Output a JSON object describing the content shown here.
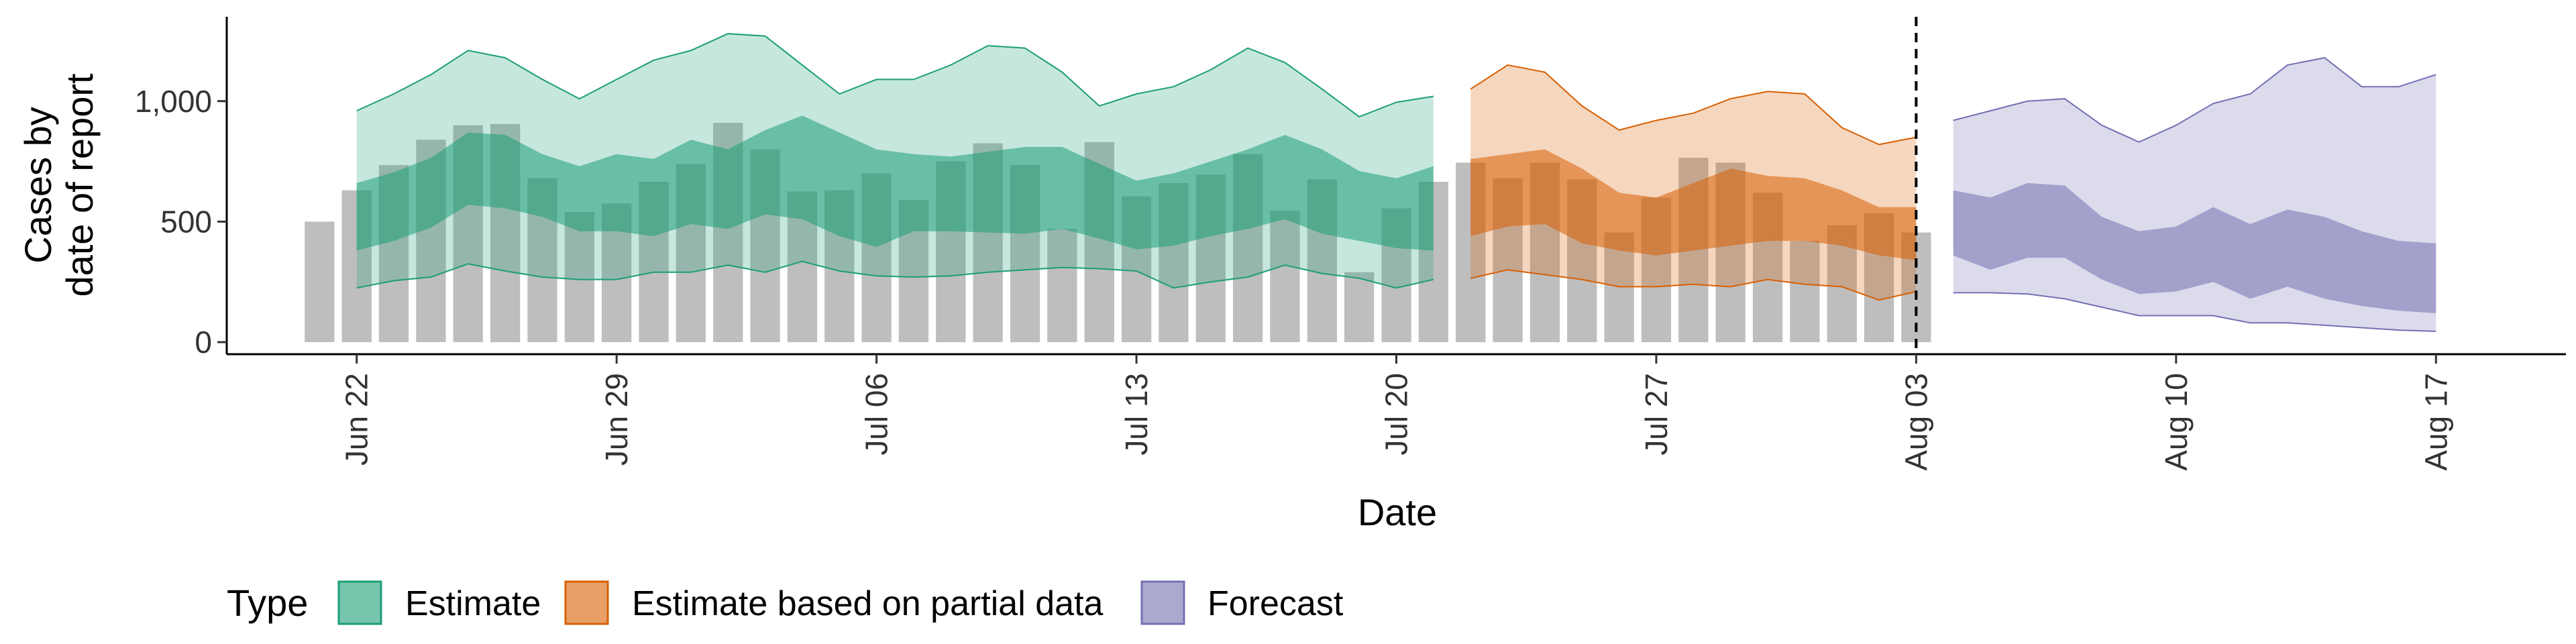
{
  "chart_data": {
    "type": "area",
    "xlabel": "Date",
    "ylabel_lines": [
      "Cases by",
      "date of report"
    ],
    "y_ticks": [
      0,
      500,
      1000
    ],
    "y_tick_labels": [
      "0",
      "500",
      "1,000"
    ],
    "ylim": [
      -50,
      1350
    ],
    "x_ticks": [
      "Jun 22",
      "Jun 29",
      "Jul 06",
      "Jul 13",
      "Jul 20",
      "Jul 27",
      "Aug 03",
      "Aug 10",
      "Aug 17"
    ],
    "x_range_days": [
      -3.5,
      59.5
    ],
    "x_origin_date": "2020-06-22",
    "vline_date": "Aug 03",
    "legend": {
      "title": "Type",
      "position": "bottom",
      "items": [
        {
          "label": "Estimate",
          "color": "#1b9e77"
        },
        {
          "label": "Estimate based on partial data",
          "color": "#d95f02"
        },
        {
          "label": "Forecast",
          "color": "#7570b3"
        }
      ]
    },
    "bars": {
      "color": "#bbbbbb",
      "dates": [
        "Jun 21",
        "Jun 22",
        "Jun 23",
        "Jun 24",
        "Jun 25",
        "Jun 26",
        "Jun 27",
        "Jun 28",
        "Jun 29",
        "Jun 30",
        "Jul 01",
        "Jul 02",
        "Jul 03",
        "Jul 04",
        "Jul 05",
        "Jul 06",
        "Jul 07",
        "Jul 08",
        "Jul 09",
        "Jul 10",
        "Jul 11",
        "Jul 12",
        "Jul 13",
        "Jul 14",
        "Jul 15",
        "Jul 16",
        "Jul 17",
        "Jul 18",
        "Jul 19",
        "Jul 20",
        "Jul 21",
        "Jul 22",
        "Jul 23",
        "Jul 24",
        "Jul 25",
        "Jul 26",
        "Jul 27",
        "Jul 28",
        "Jul 29",
        "Jul 30",
        "Jul 31",
        "Aug 01",
        "Aug 02",
        "Aug 03"
      ],
      "values": [
        500,
        630,
        735,
        840,
        900,
        905,
        680,
        540,
        575,
        665,
        740,
        910,
        800,
        625,
        630,
        700,
        590,
        750,
        825,
        735,
        470,
        830,
        605,
        660,
        695,
        780,
        545,
        675,
        290,
        555,
        665,
        745,
        680,
        745,
        675,
        455,
        600,
        765,
        745,
        620,
        420,
        485,
        535,
        455
      ]
    },
    "series": [
      {
        "name": "Estimate",
        "color": "#1b9e77",
        "dates": [
          "Jun 22",
          "Jun 23",
          "Jun 24",
          "Jun 25",
          "Jun 26",
          "Jun 27",
          "Jun 28",
          "Jun 29",
          "Jun 30",
          "Jul 01",
          "Jul 02",
          "Jul 03",
          "Jul 04",
          "Jul 05",
          "Jul 06",
          "Jul 07",
          "Jul 08",
          "Jul 09",
          "Jul 10",
          "Jul 11",
          "Jul 12",
          "Jul 13",
          "Jul 14",
          "Jul 15",
          "Jul 16",
          "Jul 17",
          "Jul 18",
          "Jul 19",
          "Jul 20",
          "Jul 21"
        ],
        "lower90": [
          225,
          255,
          270,
          325,
          295,
          270,
          260,
          260,
          290,
          290,
          320,
          290,
          335,
          295,
          275,
          270,
          275,
          290,
          300,
          310,
          305,
          295,
          225,
          250,
          270,
          320,
          285,
          265,
          225,
          260
        ],
        "lower50": [
          380,
          420,
          475,
          570,
          555,
          520,
          460,
          460,
          440,
          490,
          470,
          530,
          510,
          440,
          395,
          460,
          460,
          455,
          450,
          470,
          430,
          385,
          400,
          440,
          470,
          510,
          450,
          420,
          390,
          380
        ],
        "upper50": [
          660,
          705,
          765,
          870,
          860,
          780,
          730,
          780,
          760,
          840,
          800,
          880,
          940,
          870,
          800,
          780,
          770,
          790,
          810,
          810,
          740,
          670,
          700,
          750,
          800,
          860,
          800,
          710,
          680,
          730
        ],
        "upper90": [
          960,
          1030,
          1110,
          1210,
          1180,
          1090,
          1010,
          1090,
          1170,
          1210,
          1280,
          1270,
          1150,
          1030,
          1090,
          1090,
          1150,
          1230,
          1220,
          1120,
          980,
          1030,
          1060,
          1130,
          1220,
          1160,
          1050,
          935,
          995,
          1020
        ]
      },
      {
        "name": "Estimate based on partial data",
        "color": "#d95f02",
        "dates": [
          "Jul 22",
          "Jul 23",
          "Jul 24",
          "Jul 25",
          "Jul 26",
          "Jul 27",
          "Jul 28",
          "Jul 29",
          "Jul 30",
          "Jul 31",
          "Aug 01",
          "Aug 02",
          "Aug 03"
        ],
        "lower90": [
          265,
          300,
          280,
          260,
          230,
          230,
          240,
          230,
          260,
          240,
          230,
          175,
          210
        ],
        "lower50": [
          440,
          480,
          490,
          410,
          380,
          360,
          380,
          400,
          420,
          420,
          400,
          360,
          340
        ],
        "upper50": [
          760,
          780,
          800,
          720,
          620,
          600,
          660,
          720,
          690,
          680,
          630,
          560,
          560
        ],
        "upper90": [
          1050,
          1150,
          1120,
          980,
          880,
          920,
          950,
          1010,
          1040,
          1030,
          890,
          820,
          850
        ]
      },
      {
        "name": "Forecast",
        "color": "#7570b3",
        "dates": [
          "Aug 04",
          "Aug 05",
          "Aug 06",
          "Aug 07",
          "Aug 08",
          "Aug 09",
          "Aug 10",
          "Aug 11",
          "Aug 12",
          "Aug 13",
          "Aug 14",
          "Aug 15",
          "Aug 16",
          "Aug 17"
        ],
        "lower90": [
          205,
          205,
          200,
          180,
          145,
          110,
          110,
          110,
          80,
          80,
          70,
          60,
          50,
          45
        ],
        "lower50": [
          360,
          300,
          350,
          350,
          260,
          200,
          210,
          250,
          180,
          230,
          180,
          150,
          130,
          120
        ],
        "upper50": [
          630,
          600,
          660,
          650,
          520,
          460,
          480,
          560,
          490,
          550,
          520,
          460,
          420,
          410
        ],
        "upper90": [
          920,
          960,
          1000,
          1010,
          900,
          830,
          900,
          990,
          1030,
          1150,
          1180,
          1060,
          1060,
          1110
        ]
      }
    ]
  }
}
